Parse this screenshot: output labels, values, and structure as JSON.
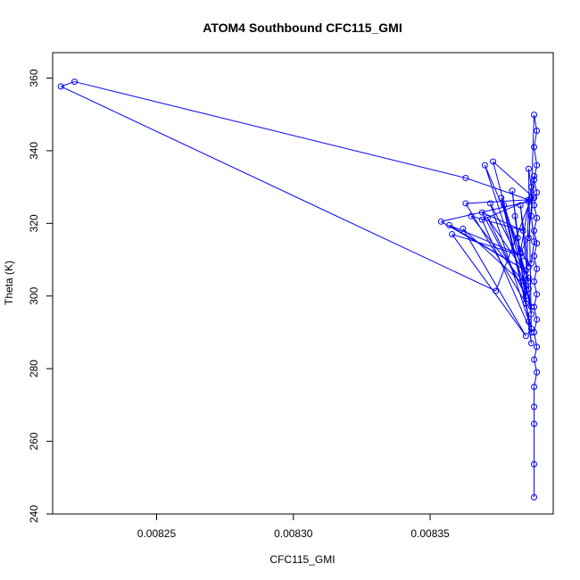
{
  "chart_data": {
    "type": "scatter",
    "title": "ATOM4 Southbound CFC115_GMI",
    "xlabel": "CFC115_GMI",
    "ylabel": "Theta (K)",
    "xlim": [
      0.008212,
      0.008395
    ],
    "ylim": [
      240,
      367
    ],
    "x_ticks": [
      "0.00825",
      "0.00830",
      "0.00835"
    ],
    "x_tick_values": [
      0.00825,
      0.0083,
      0.00835
    ],
    "y_ticks": [
      "240",
      "260",
      "280",
      "300",
      "320",
      "340",
      "360"
    ],
    "y_tick_values": [
      240,
      260,
      280,
      300,
      320,
      340,
      360
    ],
    "grid": false,
    "legend": "none",
    "colors": {
      "series": "#0000ff"
    },
    "series": [
      {
        "marker": "open-circle",
        "line": true,
        "points": [
          [
            0.008388,
            244.6
          ],
          [
            0.008388,
            253.7
          ],
          [
            0.008388,
            264.8
          ],
          [
            0.008388,
            269.5
          ],
          [
            0.008388,
            275.0
          ],
          [
            0.008389,
            279.0
          ],
          [
            0.008388,
            282.5
          ],
          [
            0.008389,
            286.0
          ],
          [
            0.008388,
            290.0
          ],
          [
            0.008389,
            293.5
          ],
          [
            0.008388,
            297.0
          ],
          [
            0.008389,
            300.5
          ],
          [
            0.008388,
            304.0
          ],
          [
            0.008389,
            307.5
          ],
          [
            0.008388,
            311.0
          ],
          [
            0.008389,
            314.5
          ],
          [
            0.008388,
            318.0
          ],
          [
            0.008389,
            321.5
          ],
          [
            0.008388,
            325.0
          ],
          [
            0.008389,
            328.5
          ],
          [
            0.008388,
            332.0
          ],
          [
            0.008389,
            336.0
          ],
          [
            0.008388,
            341.0
          ],
          [
            0.008389,
            345.5
          ],
          [
            0.008388,
            349.9
          ],
          [
            0.008387,
            327.0
          ],
          [
            0.008374,
            301.4
          ],
          [
            0.008215,
            357.7
          ],
          [
            0.00822,
            359.0
          ],
          [
            0.008363,
            332.5
          ],
          [
            0.008386,
            326.5
          ],
          [
            0.008363,
            325.5
          ],
          [
            0.008385,
            298.0
          ],
          [
            0.008386,
            326.0
          ],
          [
            0.008354,
            320.5
          ],
          [
            0.008385,
            307.0
          ],
          [
            0.008357,
            319.5
          ],
          [
            0.008384,
            311.0
          ],
          [
            0.008358,
            317.0
          ],
          [
            0.008385,
            289.0
          ],
          [
            0.008362,
            318.5
          ],
          [
            0.008386,
            302.0
          ],
          [
            0.008365,
            322.0
          ],
          [
            0.008384,
            318.0
          ],
          [
            0.008369,
            323.0
          ],
          [
            0.008385,
            300.0
          ],
          [
            0.008371,
            321.5
          ],
          [
            0.008386,
            305.0
          ],
          [
            0.008372,
            325.5
          ],
          [
            0.008387,
            291.0
          ],
          [
            0.008376,
            327.0
          ],
          [
            0.008386,
            304.0
          ],
          [
            0.008377,
            325.0
          ],
          [
            0.008385,
            298.0
          ],
          [
            0.00838,
            329.0
          ],
          [
            0.008386,
            293.0
          ],
          [
            0.008381,
            322.0
          ],
          [
            0.008387,
            287.0
          ],
          [
            0.008382,
            316.0
          ],
          [
            0.008387,
            295.0
          ],
          [
            0.008383,
            325.0
          ],
          [
            0.008386,
            308.0
          ],
          [
            0.00837,
            336.0
          ],
          [
            0.008387,
            297.0
          ],
          [
            0.008373,
            337.0
          ],
          [
            0.008388,
            327.0
          ],
          [
            0.008369,
            321.0
          ],
          [
            0.008387,
            290.0
          ],
          [
            0.008386,
            335.0
          ],
          [
            0.008387,
            330.0
          ],
          [
            0.008383,
            312.0
          ],
          [
            0.008386,
            316.0
          ],
          [
            0.008388,
            333.0
          ],
          [
            0.008387,
            322.0
          ],
          [
            0.008388,
            315.0
          ],
          [
            0.008387,
            309.0
          ]
        ]
      }
    ]
  }
}
